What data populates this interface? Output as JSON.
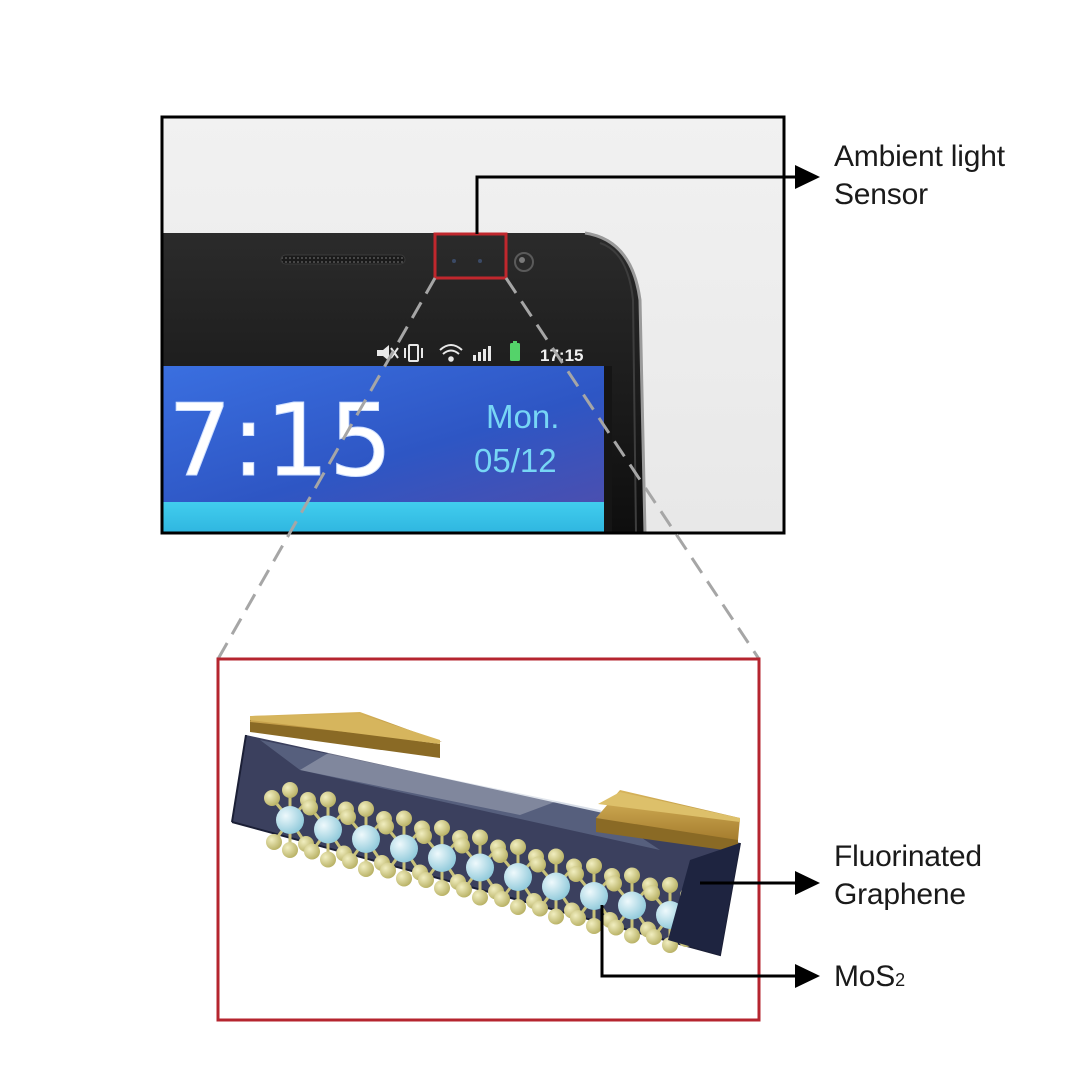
{
  "labels": {
    "ambient_line1": "Ambient light",
    "ambient_line2": "Sensor",
    "fluorinated_line1": "Fluorinated",
    "fluorinated_line2": "Graphene",
    "mos2_main": "MoS",
    "mos2_sub": "2"
  },
  "phone_screen": {
    "status_time": "17:15",
    "clock": "7:15",
    "day": "Mon.",
    "date": "05/12"
  },
  "icons": [
    "mute-icon",
    "vibrate-icon",
    "wifi-icon",
    "signal-icon",
    "battery-icon"
  ],
  "colors": {
    "highlight_box": "#c0272d",
    "callout_arrow": "#000000",
    "dashed_lines": "#a6a6a6",
    "screen_blue": "#2f6fd0",
    "screen_cyan": "#3ec8ea",
    "gold_electrode": "#c9a24b",
    "mo_atom": "#b9e3ee",
    "s_atom": "#d9d48a",
    "graphene_layer": "#2a3050"
  }
}
